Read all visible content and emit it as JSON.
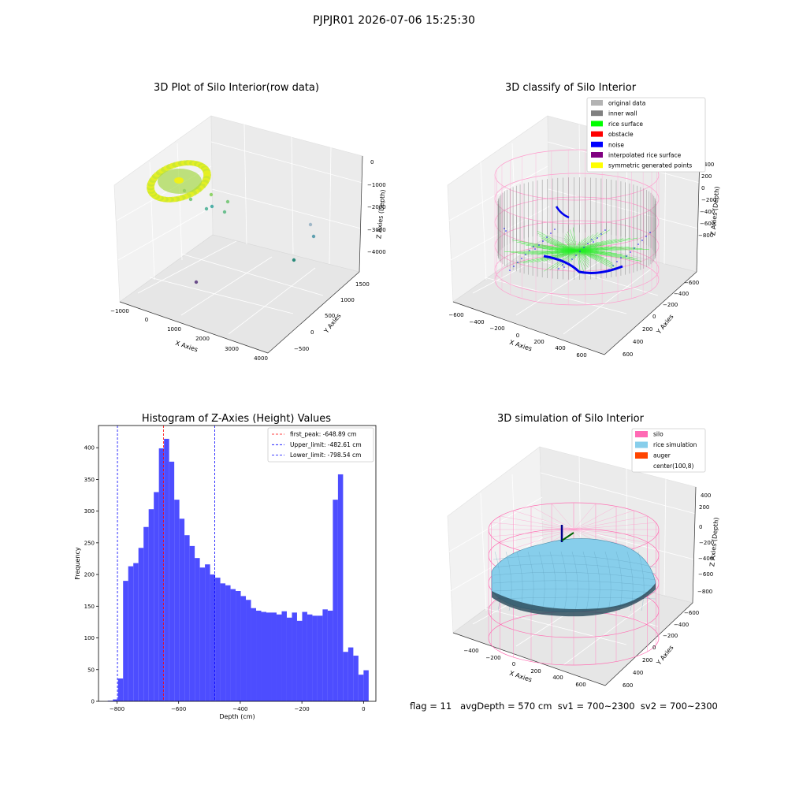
{
  "figure_title": "PJPJR01 2026-07-06 15:25:30",
  "footer": "flag = 11   avgDepth = 570 cm  sv1 = 700~2300  sv2 = 700~2300",
  "chart_data": [
    {
      "type": "scatter",
      "title": "3D Plot of Silo Interior(row data)",
      "xlabel": "X Axies",
      "ylabel": "Y Axies",
      "zlabel": "Z Axies (Depth)",
      "x_ticks": [
        "−1000",
        "0",
        "1000",
        "2000",
        "3000",
        "4000"
      ],
      "y_ticks": [
        "−500",
        "0",
        "500",
        "1000",
        "1500"
      ],
      "z_ticks": [
        "0",
        "−1000",
        "−2000",
        "−3000",
        "−4000"
      ]
    },
    {
      "type": "scatter",
      "title": "3D classify of Silo Interior",
      "xlabel": "X Axies",
      "ylabel": "Y Axies",
      "zlabel": "Z Axies (Depth)",
      "x_ticks": [
        "−600",
        "−400",
        "−200",
        "0",
        "200",
        "400",
        "600"
      ],
      "y_ticks": [
        "−600",
        "−400",
        "−200",
        "0",
        "200",
        "400",
        "600"
      ],
      "z_ticks": [
        "400",
        "200",
        "0",
        "−200",
        "−400",
        "−600",
        "−800"
      ],
      "legend": [
        {
          "label": "original data",
          "color": "#b3b3b3"
        },
        {
          "label": "inner wall",
          "color": "#808080"
        },
        {
          "label": "rice surface",
          "color": "#00ff00"
        },
        {
          "label": "obstacle",
          "color": "#ff0000"
        },
        {
          "label": "noise",
          "color": "#0000ff"
        },
        {
          "label": "interpolated rice surface",
          "color": "#800080"
        },
        {
          "label": "symmetric generated points",
          "color": "#ffff00"
        }
      ]
    },
    {
      "type": "bar",
      "title": "Histogram of Z-Axies (Height) Values",
      "xlabel": "Depth (cm)",
      "ylabel": "Frequency",
      "xlim": [
        -860,
        40
      ],
      "ylim": [
        0,
        435
      ],
      "x_ticks": [
        -800,
        -600,
        -400,
        -200,
        0
      ],
      "y_ticks": [
        0,
        50,
        100,
        150,
        200,
        250,
        300,
        350,
        400
      ],
      "bin_start": -830,
      "bin_width": 16.6,
      "values": [
        1,
        3,
        36,
        190,
        213,
        218,
        242,
        275,
        303,
        330,
        399,
        414,
        378,
        318,
        288,
        262,
        245,
        226,
        211,
        216,
        200,
        195,
        186,
        183,
        177,
        174,
        166,
        160,
        147,
        143,
        141,
        140,
        140,
        137,
        142,
        132,
        140,
        127,
        141,
        137,
        135,
        135,
        145,
        143,
        318,
        358,
        78,
        85,
        72,
        42,
        49
      ],
      "color": "#4d4dff",
      "lines": [
        {
          "label": "first_peak: -648.89 cm",
          "x": -648.89,
          "color": "#ff0000"
        },
        {
          "label": "Upper_limit: -482.61 cm",
          "x": -482.61,
          "color": "#0000ff"
        },
        {
          "label": "Lower_limit: -798.54 cm",
          "x": -798.54,
          "color": "#0000ff"
        }
      ]
    },
    {
      "type": "scatter",
      "title": "3D simulation of Silo Interior",
      "xlabel": "X Axies",
      "ylabel": "Y Axies",
      "zlabel": "Z Axies (Depth)",
      "x_ticks": [
        "−400",
        "−200",
        "0",
        "200",
        "400",
        "600"
      ],
      "y_ticks": [
        "−600",
        "−400",
        "−200",
        "0",
        "200",
        "400",
        "600"
      ],
      "z_ticks": [
        "400",
        "200",
        "0",
        "−200",
        "−400",
        "−600",
        "−800"
      ],
      "legend": [
        {
          "label": "silo",
          "color": "#ff69b4"
        },
        {
          "label": "rice simulation",
          "color": "#87ceeb"
        },
        {
          "label": "auger",
          "color": "#ff4500"
        },
        {
          "label": "center(100,8)",
          "color": ""
        }
      ]
    }
  ]
}
